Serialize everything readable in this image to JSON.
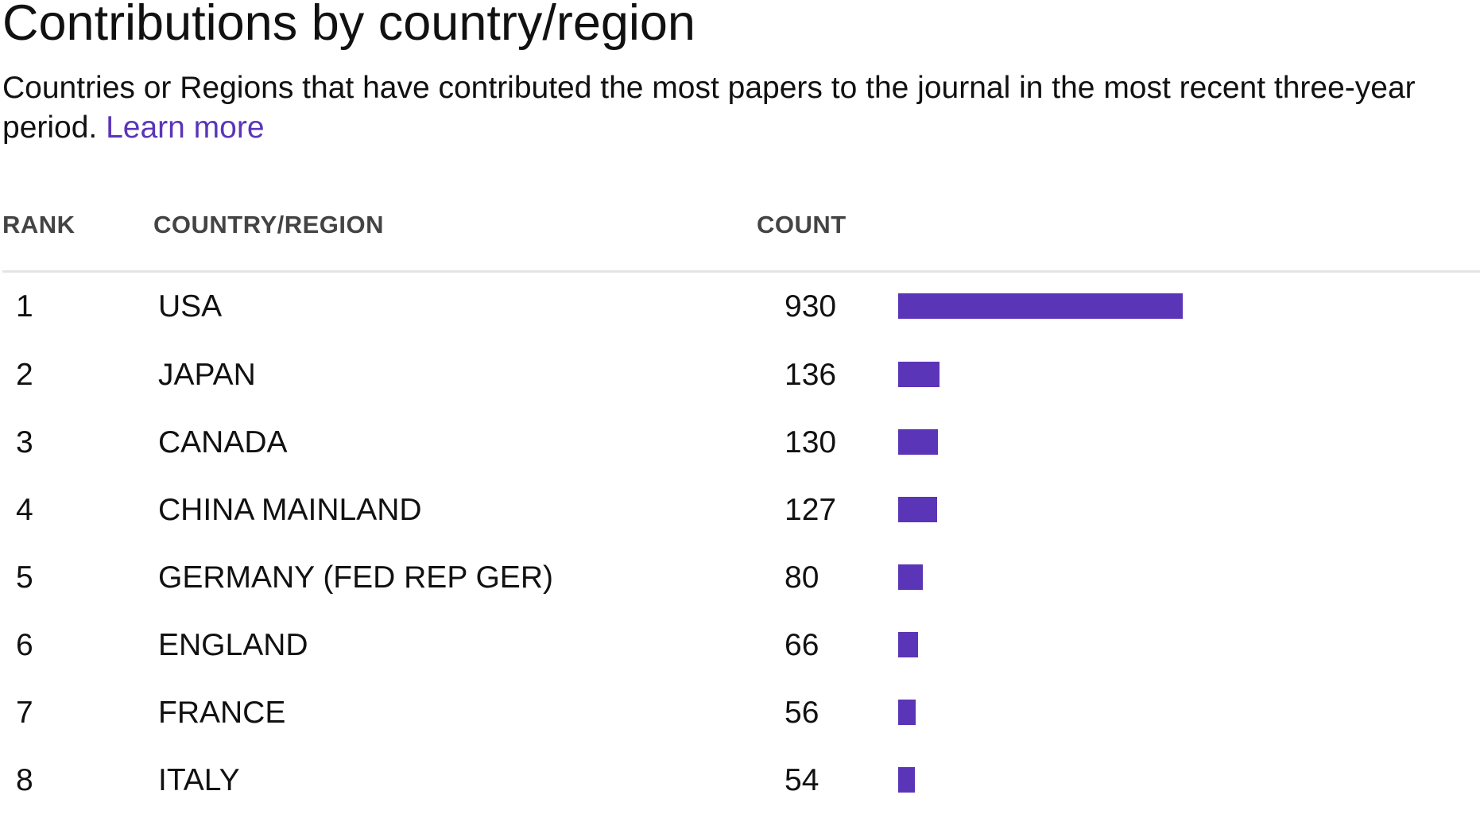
{
  "header": {
    "title": "Contributions by country/region",
    "subtitle": "Countries or Regions that have contributed the most papers to the journal in the most recent three-year period.",
    "learn_more": "Learn more"
  },
  "table": {
    "columns": {
      "rank": "RANK",
      "country": "COUNTRY/REGION",
      "count": "COUNT"
    },
    "rows": [
      {
        "rank": "1",
        "country": "USA",
        "count": "930"
      },
      {
        "rank": "2",
        "country": "JAPAN",
        "count": "136"
      },
      {
        "rank": "3",
        "country": "CANADA",
        "count": "130"
      },
      {
        "rank": "4",
        "country": "CHINA MAINLAND",
        "count": "127"
      },
      {
        "rank": "5",
        "country": "GERMANY (FED REP GER)",
        "count": "80"
      },
      {
        "rank": "6",
        "country": "ENGLAND",
        "count": "66"
      },
      {
        "rank": "7",
        "country": "FRANCE",
        "count": "56"
      },
      {
        "rank": "8",
        "country": "ITALY",
        "count": "54"
      }
    ]
  },
  "colors": {
    "accent": "#5b35b8",
    "divider": "#e4e4e4",
    "header_text": "#444444"
  }
}
